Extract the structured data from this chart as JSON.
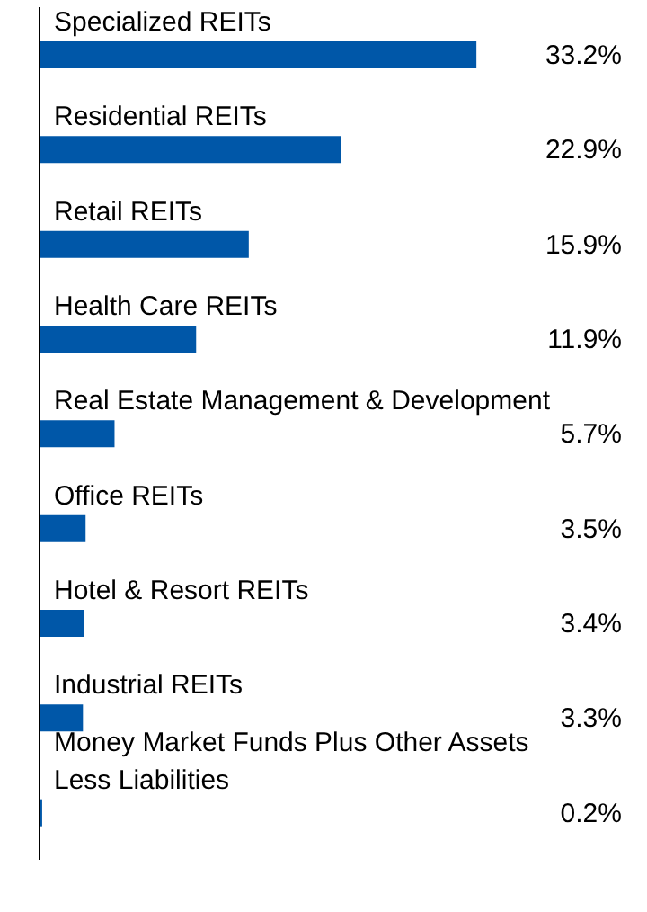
{
  "chart_data": {
    "type": "bar",
    "orientation": "horizontal",
    "categories": [
      "Specialized REITs",
      "Residential REITs",
      "Retail REITs",
      "Health Care REITs",
      "Real Estate Management & Development",
      "Office REITs",
      "Hotel & Resort REITs",
      "Industrial REITs",
      "Money Market Funds Plus Other Assets Less Liabilities"
    ],
    "values": [
      33.2,
      22.9,
      15.9,
      11.9,
      5.7,
      3.5,
      3.4,
      3.3,
      0.2
    ],
    "value_labels": [
      "33.2%",
      "22.9%",
      "15.9%",
      "11.9%",
      "5.7%",
      "3.5%",
      "3.4%",
      "3.3%",
      "0.2%"
    ],
    "color": "#0057a8",
    "grid": false,
    "legend": false
  }
}
